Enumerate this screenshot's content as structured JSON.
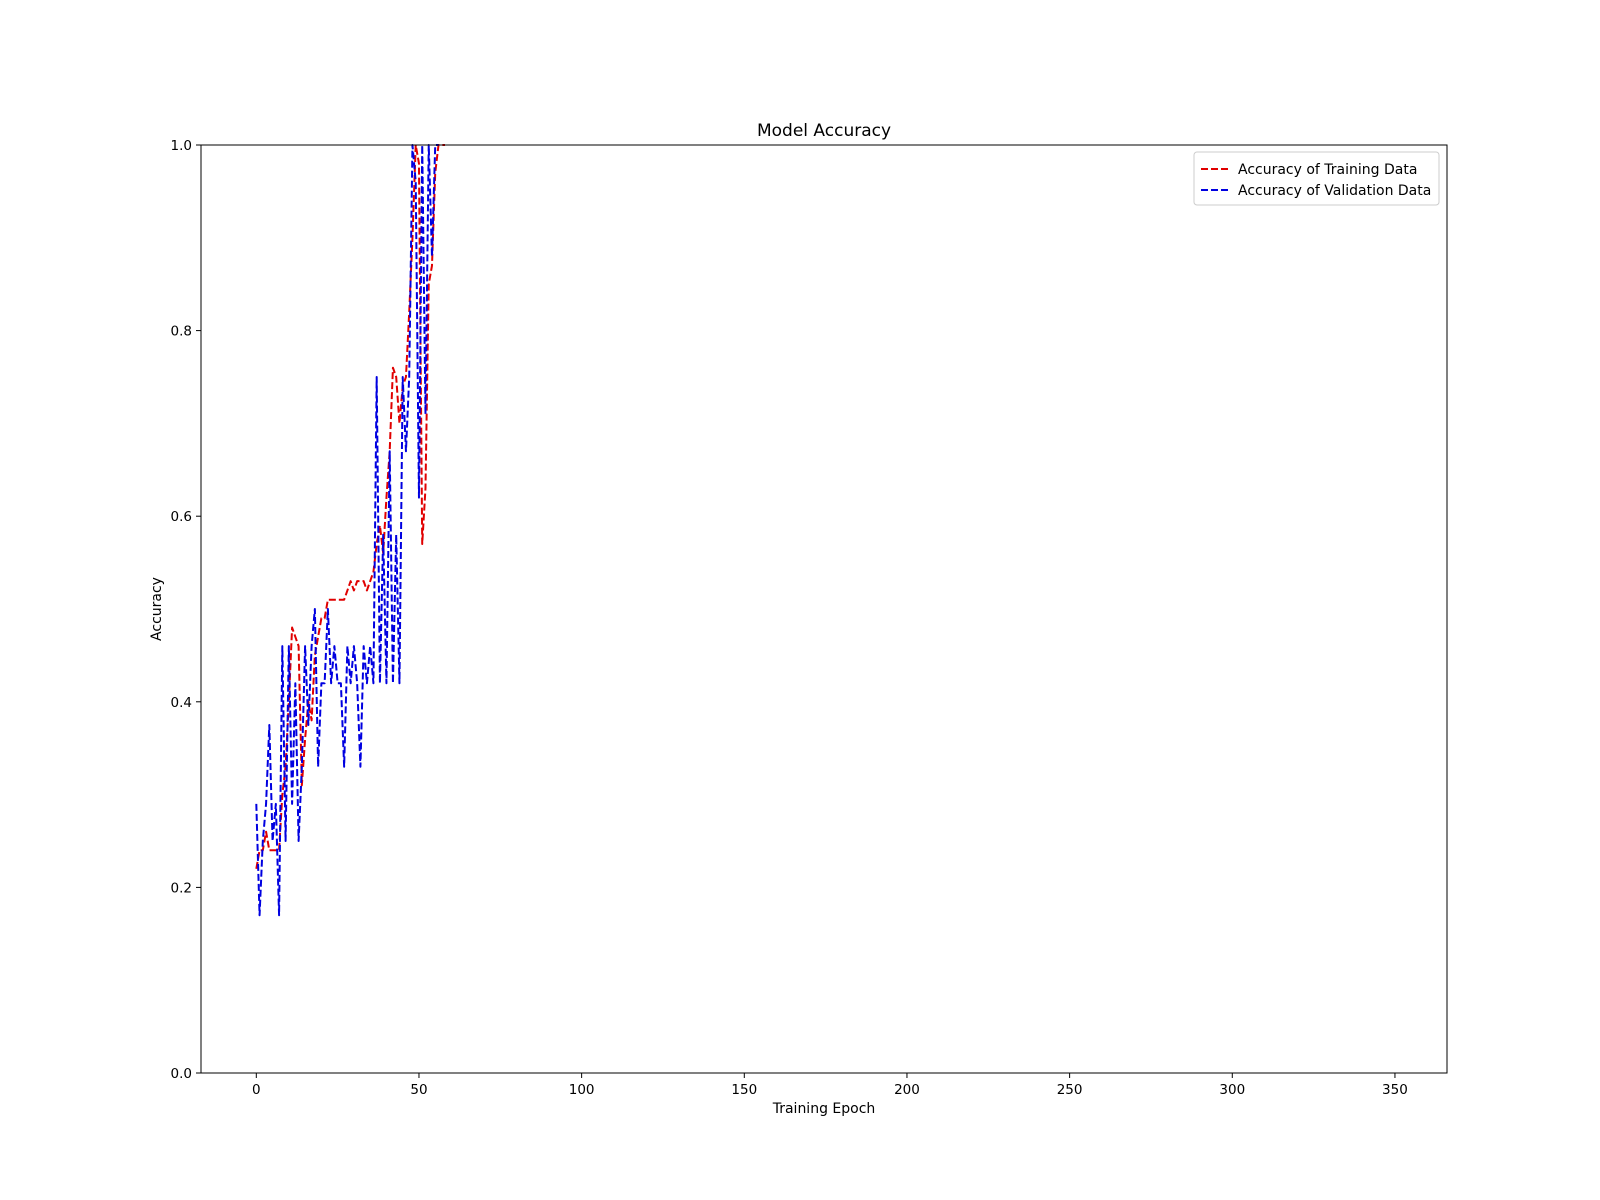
{
  "chart_data": {
    "type": "line",
    "title": "Model Accuracy",
    "xlabel": "Training Epoch",
    "ylabel": "Accuracy",
    "xlim": [
      -17,
      366
    ],
    "ylim": [
      0.0,
      1.0
    ],
    "xticks": [
      0,
      50,
      100,
      150,
      200,
      250,
      300,
      350
    ],
    "xtick_labels": [
      "0",
      "50",
      "100",
      "150",
      "200",
      "250",
      "300",
      "350"
    ],
    "yticks": [
      0.0,
      0.2,
      0.4,
      0.6,
      0.8,
      1.0
    ],
    "ytick_labels": [
      "0.0",
      "0.2",
      "0.4",
      "0.6",
      "0.8",
      "1.0"
    ],
    "grid": false,
    "legend_position": "top-right",
    "series": [
      {
        "name": "Accuracy of Training Data",
        "color": "#e00000",
        "dash": "dashed",
        "x": [
          0,
          1,
          2,
          3,
          4,
          5,
          6,
          7,
          8,
          9,
          10,
          11,
          12,
          13,
          14,
          15,
          16,
          17,
          18,
          19,
          20,
          21,
          22,
          23,
          24,
          25,
          26,
          27,
          28,
          29,
          30,
          31,
          32,
          33,
          34,
          35,
          36,
          37,
          38,
          39,
          40,
          41,
          42,
          43,
          44,
          45,
          46,
          47,
          48,
          49,
          50,
          51,
          52,
          53,
          54,
          55,
          56,
          57,
          58
        ],
        "y": [
          0.22,
          0.24,
          0.24,
          0.26,
          0.24,
          0.24,
          0.24,
          0.24,
          0.3,
          0.33,
          0.4,
          0.48,
          0.47,
          0.46,
          0.31,
          0.36,
          0.4,
          0.38,
          0.45,
          0.47,
          0.49,
          0.49,
          0.51,
          0.51,
          0.51,
          0.51,
          0.51,
          0.51,
          0.52,
          0.53,
          0.52,
          0.53,
          0.53,
          0.53,
          0.52,
          0.53,
          0.54,
          0.57,
          0.59,
          0.56,
          0.62,
          0.67,
          0.76,
          0.75,
          0.7,
          0.74,
          0.75,
          0.82,
          0.9,
          1.0,
          0.98,
          0.57,
          0.63,
          0.85,
          0.87,
          0.97,
          1.0,
          1.0,
          1.0
        ]
      },
      {
        "name": "Accuracy of Validation Data",
        "color": "#0000e0",
        "dash": "dashed",
        "x": [
          0,
          1,
          2,
          3,
          4,
          5,
          6,
          7,
          8,
          9,
          10,
          11,
          12,
          13,
          14,
          15,
          16,
          17,
          18,
          19,
          20,
          21,
          22,
          23,
          24,
          25,
          26,
          27,
          28,
          29,
          30,
          31,
          32,
          33,
          34,
          35,
          36,
          37,
          38,
          39,
          40,
          41,
          42,
          43,
          44,
          45,
          46,
          47,
          48,
          49,
          50,
          51,
          52,
          53,
          54,
          55,
          56
        ],
        "y": [
          0.29,
          0.17,
          0.25,
          0.29,
          0.375,
          0.25,
          0.29,
          0.17,
          0.46,
          0.25,
          0.46,
          0.29,
          0.42,
          0.25,
          0.33,
          0.46,
          0.375,
          0.46,
          0.5,
          0.33,
          0.42,
          0.42,
          0.5,
          0.42,
          0.46,
          0.42,
          0.42,
          0.33,
          0.46,
          0.42,
          0.46,
          0.42,
          0.33,
          0.46,
          0.42,
          0.46,
          0.42,
          0.75,
          0.42,
          0.58,
          0.42,
          0.67,
          0.42,
          0.58,
          0.42,
          0.75,
          0.67,
          0.75,
          1.0,
          0.96,
          0.62,
          1.0,
          0.71,
          1.0,
          0.88,
          1.0,
          1.0
        ]
      }
    ]
  }
}
